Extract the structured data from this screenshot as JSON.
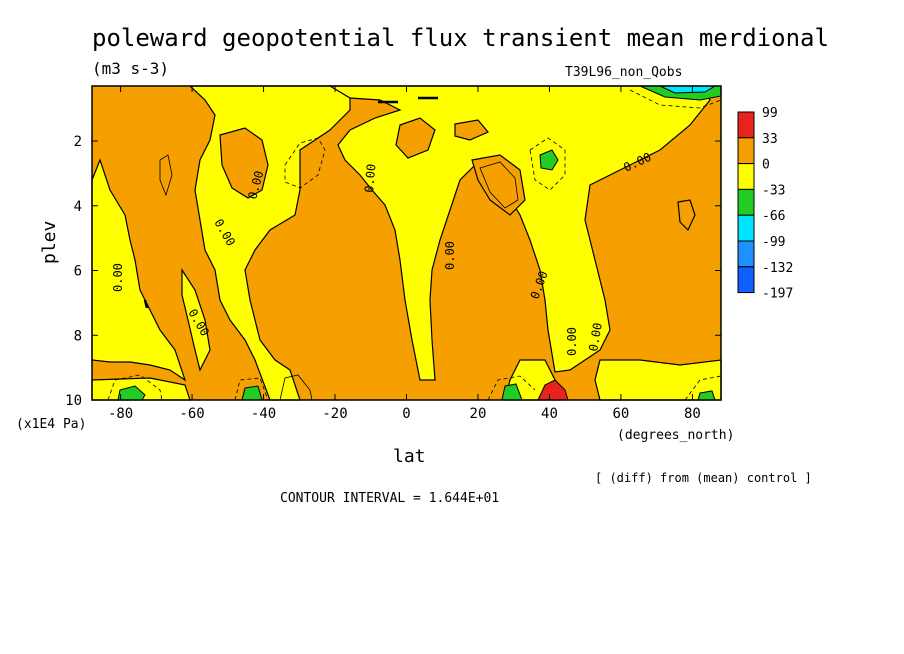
{
  "chart_data": {
    "type": "heatmap",
    "title": "poleward geopotential flux transient mean merdional",
    "units": "(m3 s-3)",
    "experiment": "T39L96_non_Qobs",
    "xlabel": "lat",
    "x_units": "(degrees_north)",
    "ylabel": "plev",
    "y_units": "(x1E4 Pa)",
    "xlim": [
      -88,
      88
    ],
    "ylim": [
      10,
      0.3
    ],
    "x_ticks": [
      "-80",
      "-60",
      "-40",
      "-20",
      "0",
      "20",
      "40",
      "60",
      "80"
    ],
    "y_ticks": [
      "2",
      "4",
      "6",
      "8",
      "10"
    ],
    "contour_labels": [
      "0.00",
      "0.00",
      "0.00",
      "0.00",
      "0.00",
      "0.00",
      "0.00",
      "0.00",
      "0.00",
      "0.00"
    ],
    "colorbar": {
      "levels": [
        "99",
        "33",
        "0",
        "-33",
        "-66",
        "-99",
        "-132",
        "-197"
      ],
      "colors": [
        "#e8231b",
        "#f5a000",
        "#ffff00",
        "#22cc22",
        "#00e5ff",
        "#1e90ff",
        "#1060ff"
      ]
    },
    "note": "[ (diff) from (mean) control ]",
    "contour_interval": "CONTOUR INTERVAL = 1.644E+01"
  }
}
